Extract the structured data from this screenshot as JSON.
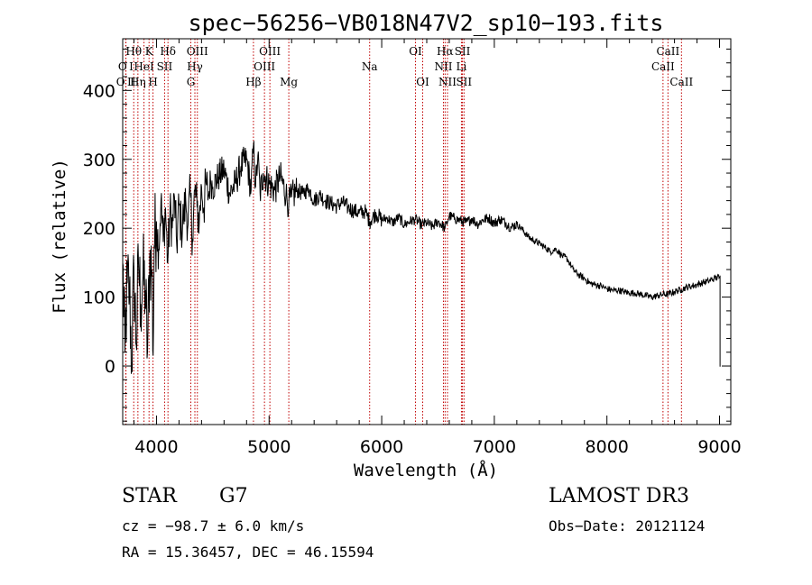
{
  "chart_data": {
    "type": "line",
    "title": "spec−56256−VB018N47V2_sp10−193.fits",
    "xlabel": "Wavelength (Å)",
    "ylabel": "Flux (relative)",
    "xlim": [
      3700,
      9100
    ],
    "ylim": [
      -85,
      475
    ],
    "xticks": [
      4000,
      5000,
      6000,
      7000,
      8000,
      9000
    ],
    "yticks": [
      0,
      100,
      200,
      300,
      400
    ],
    "series": [
      {
        "name": "flux",
        "x": [
          3700,
          3720,
          3740,
          3760,
          3780,
          3800,
          3820,
          3840,
          3860,
          3880,
          3900,
          3920,
          3940,
          3960,
          3970,
          3980,
          4000,
          4020,
          4040,
          4060,
          4080,
          4100,
          4120,
          4140,
          4160,
          4180,
          4200,
          4220,
          4240,
          4260,
          4280,
          4300,
          4320,
          4340,
          4360,
          4380,
          4400,
          4420,
          4440,
          4460,
          4480,
          4500,
          4550,
          4600,
          4650,
          4700,
          4750,
          4800,
          4840,
          4861,
          4880,
          4900,
          4920,
          4950,
          5000,
          5050,
          5100,
          5150,
          5175,
          5200,
          5250,
          5300,
          5350,
          5400,
          5450,
          5500,
          5550,
          5600,
          5650,
          5700,
          5750,
          5800,
          5850,
          5893,
          5950,
          6000,
          6050,
          6100,
          6150,
          6200,
          6250,
          6300,
          6350,
          6400,
          6450,
          6500,
          6563,
          6600,
          6650,
          6700,
          6750,
          6800,
          6850,
          6900,
          6950,
          7000,
          7050,
          7100,
          7150,
          7200,
          7250,
          7300,
          7350,
          7400,
          7450,
          7500,
          7550,
          7600,
          7650,
          7700,
          7750,
          7800,
          7850,
          7900,
          7950,
          8000,
          8050,
          8100,
          8150,
          8200,
          8250,
          8300,
          8350,
          8400,
          8450,
          8500,
          8542,
          8600,
          8662,
          8700,
          8750,
          8800,
          8850,
          8900,
          8950,
          9000,
          9005
        ],
        "values": [
          150,
          20,
          120,
          110,
          5,
          140,
          30,
          150,
          90,
          130,
          110,
          20,
          160,
          140,
          15,
          175,
          210,
          170,
          240,
          180,
          230,
          150,
          225,
          200,
          245,
          175,
          235,
          200,
          215,
          240,
          205,
          250,
          185,
          255,
          230,
          210,
          260,
          230,
          265,
          245,
          270,
          260,
          275,
          285,
          250,
          265,
          290,
          300,
          255,
          320,
          260,
          305,
          250,
          280,
          265,
          255,
          275,
          250,
          235,
          245,
          255,
          250,
          258,
          240,
          248,
          240,
          236,
          232,
          238,
          230,
          226,
          222,
          225,
          210,
          222,
          212,
          215,
          208,
          216,
          205,
          210,
          213,
          205,
          208,
          202,
          210,
          200,
          218,
          214,
          211,
          208,
          214,
          206,
          212,
          215,
          207,
          213,
          208,
          201,
          206,
          198,
          188,
          182,
          178,
          172,
          166,
          170,
          160,
          155,
          140,
          132,
          127,
          120,
          118,
          116,
          112,
          110,
          110,
          108,
          106,
          106,
          104,
          102,
          100,
          102,
          104,
          104,
          108,
          111,
          114,
          116,
          118,
          121,
          123,
          127,
          129,
          130
        ]
      }
    ],
    "spectral_lines": [
      {
        "label": "O I",
        "wl": 3727,
        "row": 2
      },
      {
        "label": "O II",
        "wl": 3729,
        "row": 3
      },
      {
        "label": "Hθ",
        "wl": 3798,
        "row": 1
      },
      {
        "label": "Hη",
        "wl": 3835,
        "row": 3
      },
      {
        "label": "HeI",
        "wl": 3889,
        "row": 2
      },
      {
        "label": "K",
        "wl": 3934,
        "row": 1
      },
      {
        "label": "H",
        "wl": 3969,
        "row": 3
      },
      {
        "label": "SII",
        "wl": 4072,
        "row": 2
      },
      {
        "label": "Hδ",
        "wl": 4102,
        "row": 1
      },
      {
        "label": "G",
        "wl": 4305,
        "row": 3
      },
      {
        "label": "Hγ",
        "wl": 4341,
        "row": 2
      },
      {
        "label": "OIII",
        "wl": 4363,
        "row": 1
      },
      {
        "label": "Hβ",
        "wl": 4861,
        "row": 3
      },
      {
        "label": "OIII",
        "wl": 4959,
        "row": 2
      },
      {
        "label": "OIII",
        "wl": 5007,
        "row": 1
      },
      {
        "label": "Mg",
        "wl": 5175,
        "row": 3
      },
      {
        "label": "Na",
        "wl": 5893,
        "row": 2
      },
      {
        "label": "OI",
        "wl": 6300,
        "row": 1
      },
      {
        "label": "OI",
        "wl": 6364,
        "row": 3
      },
      {
        "label": "NII",
        "wl": 6548,
        "row": 2
      },
      {
        "label": "Hα",
        "wl": 6563,
        "row": 1
      },
      {
        "label": "NII",
        "wl": 6584,
        "row": 3
      },
      {
        "label": "SII",
        "wl": 6717,
        "row": 1
      },
      {
        "label": "Li",
        "wl": 6708,
        "row": 2
      },
      {
        "label": "SII",
        "wl": 6731,
        "row": 3
      },
      {
        "label": "CaII",
        "wl": 8498,
        "row": 2
      },
      {
        "label": "CaII",
        "wl": 8542,
        "row": 1
      },
      {
        "label": "CaII",
        "wl": 8662,
        "row": 3
      }
    ]
  },
  "info": {
    "class": "STAR",
    "subclass": "G7",
    "survey": "LAMOST DR3",
    "cz": "cz = −98.7 ± 6.0 km/s",
    "obs_date": "Obs−Date: 20121124",
    "radec": "RA =  15.36457, DEC =  46.15594"
  },
  "colors": {
    "line_marker": "#c00000",
    "flux": "#000000"
  }
}
